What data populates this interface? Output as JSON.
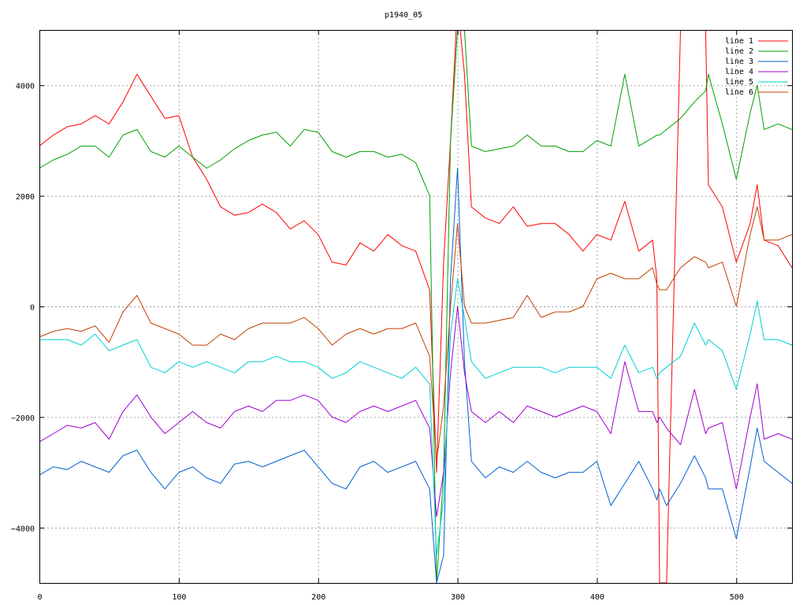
{
  "chart_data": {
    "type": "line",
    "title": "p1940_05",
    "xlabel": "",
    "ylabel": "",
    "xlim": [
      0,
      540
    ],
    "ylim": [
      -5000,
      5000
    ],
    "xticks": [
      0,
      100,
      200,
      300,
      400,
      500
    ],
    "yticks": [
      -4000,
      -2000,
      0,
      2000,
      4000
    ],
    "grid": true,
    "legend_position": "top-right",
    "x": [
      0,
      10,
      20,
      30,
      40,
      50,
      60,
      70,
      80,
      90,
      100,
      110,
      120,
      130,
      140,
      150,
      160,
      170,
      180,
      190,
      200,
      210,
      220,
      230,
      240,
      250,
      260,
      270,
      280,
      285,
      290,
      295,
      300,
      305,
      310,
      320,
      330,
      340,
      350,
      360,
      370,
      380,
      390,
      400,
      410,
      420,
      430,
      440,
      443,
      445,
      450,
      460,
      470,
      478,
      480,
      490,
      500,
      510,
      515,
      520,
      530,
      540
    ],
    "series": [
      {
        "name": "line 1",
        "color": "#ff0000",
        "values": [
          2900,
          3100,
          3250,
          3300,
          3450,
          3300,
          3700,
          4200,
          3800,
          3400,
          3450,
          2700,
          2300,
          1800,
          1650,
          1700,
          1850,
          1700,
          1400,
          1550,
          1300,
          800,
          750,
          1150,
          1000,
          1300,
          1100,
          1000,
          300,
          -3000,
          800,
          3000,
          5500,
          4200,
          1800,
          1600,
          1500,
          1800,
          1450,
          1500,
          1500,
          1300,
          1000,
          1300,
          1200,
          1900,
          1000,
          1200,
          500,
          -5000,
          -5000,
          5000,
          5000,
          5000,
          2200,
          1800,
          800,
          1500,
          2200,
          1200,
          1100,
          700
        ]
      },
      {
        "name": "line 2",
        "color": "#00a000",
        "values": [
          2500,
          2650,
          2750,
          2900,
          2900,
          2700,
          3100,
          3200,
          2800,
          2700,
          2900,
          2700,
          2500,
          2650,
          2850,
          3000,
          3100,
          3150,
          2900,
          3200,
          3150,
          2800,
          2700,
          2800,
          2800,
          2700,
          2750,
          2600,
          2000,
          -5000,
          -3000,
          3000,
          5000,
          5000,
          2900,
          2800,
          2850,
          2900,
          3100,
          2900,
          2900,
          2800,
          2800,
          3000,
          2900,
          4200,
          2900,
          3050,
          3100,
          3100,
          3200,
          3400,
          3700,
          3900,
          4200,
          3300,
          2300,
          3500,
          4000,
          3200,
          3300,
          3200
        ]
      },
      {
        "name": "line 3",
        "color": "#0060d0",
        "values": [
          -3050,
          -2900,
          -2950,
          -2800,
          -2900,
          -3000,
          -2700,
          -2600,
          -3000,
          -3300,
          -3000,
          -2900,
          -3100,
          -3200,
          -2850,
          -2800,
          -2900,
          -2800,
          -2700,
          -2600,
          -2900,
          -3200,
          -3300,
          -2900,
          -2800,
          -3000,
          -2900,
          -2800,
          -3300,
          -5000,
          -4500,
          500,
          2500,
          -1000,
          -2800,
          -3100,
          -2900,
          -3000,
          -2800,
          -3000,
          -3100,
          -3000,
          -3000,
          -2800,
          -3600,
          -3200,
          -2800,
          -3300,
          -3500,
          -3300,
          -3600,
          -3200,
          -2700,
          -3100,
          -3300,
          -3300,
          -4200,
          -2900,
          -2200,
          -2800,
          -3000,
          -3200
        ]
      },
      {
        "name": "line 4",
        "color": "#a000d0",
        "values": [
          -2450,
          -2300,
          -2150,
          -2200,
          -2100,
          -2400,
          -1900,
          -1600,
          -2000,
          -2300,
          -2100,
          -1900,
          -2100,
          -2200,
          -1900,
          -1800,
          -1900,
          -1700,
          -1700,
          -1600,
          -1700,
          -2000,
          -2100,
          -1900,
          -1800,
          -1900,
          -1800,
          -1700,
          -2200,
          -3800,
          -3000,
          -1200,
          0,
          -1200,
          -1900,
          -2100,
          -1900,
          -2100,
          -1800,
          -1900,
          -2000,
          -1900,
          -1800,
          -1900,
          -2300,
          -1000,
          -1900,
          -1900,
          -2100,
          -2000,
          -2200,
          -2500,
          -1500,
          -2300,
          -2200,
          -2100,
          -3300,
          -2000,
          -1400,
          -2400,
          -2300,
          -2400
        ]
      },
      {
        "name": "line 5",
        "color": "#00d0d0",
        "values": [
          -600,
          -600,
          -600,
          -700,
          -500,
          -800,
          -700,
          -600,
          -1100,
          -1200,
          -1000,
          -1100,
          -1000,
          -1100,
          -1200,
          -1000,
          -1000,
          -900,
          -1000,
          -1000,
          -1100,
          -1300,
          -1200,
          -1000,
          -1100,
          -1200,
          -1300,
          -1100,
          -1400,
          -4500,
          -3500,
          -500,
          500,
          -200,
          -1000,
          -1300,
          -1200,
          -1100,
          -1100,
          -1100,
          -1200,
          -1100,
          -1100,
          -1100,
          -1300,
          -700,
          -1200,
          -1100,
          -1300,
          -1200,
          -1100,
          -900,
          -300,
          -700,
          -600,
          -800,
          -1500,
          -500,
          100,
          -600,
          -600,
          -700
        ]
      },
      {
        "name": "line 6",
        "color": "#c04000",
        "values": [
          -550,
          -450,
          -400,
          -450,
          -350,
          -650,
          -100,
          200,
          -300,
          -400,
          -500,
          -700,
          -700,
          -500,
          -600,
          -400,
          -300,
          -300,
          -300,
          -200,
          -400,
          -700,
          -500,
          -400,
          -500,
          -400,
          -400,
          -300,
          -900,
          -2800,
          -1800,
          0,
          1500,
          0,
          -300,
          -300,
          -250,
          -200,
          200,
          -200,
          -100,
          -100,
          0,
          500,
          600,
          500,
          500,
          700,
          400,
          300,
          300,
          700,
          900,
          800,
          700,
          800,
          0,
          1300,
          1800,
          1200,
          1200,
          1300
        ]
      }
    ]
  }
}
